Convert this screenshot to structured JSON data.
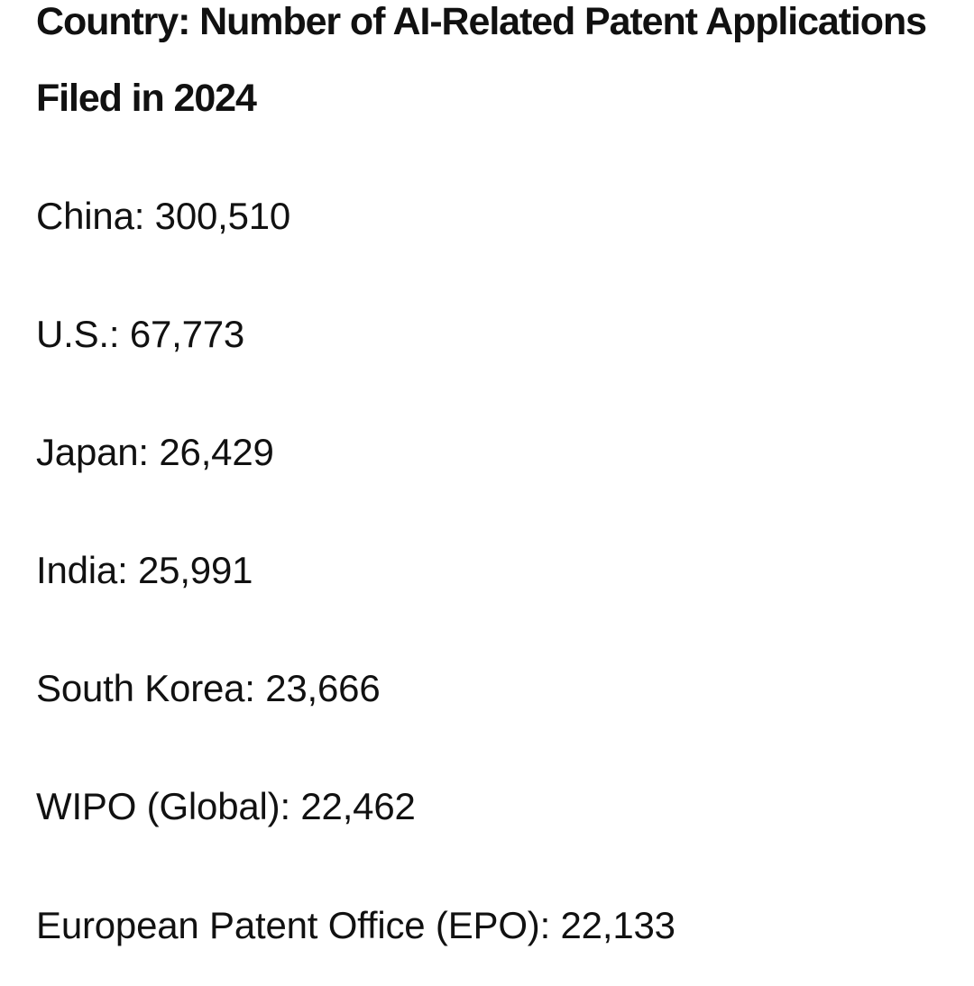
{
  "document": {
    "title": "Country: Number of AI-Related Patent Applications Filed in 2024",
    "entries": [
      {
        "text": "China: 300,510"
      },
      {
        "text": "U.S.: 67,773"
      },
      {
        "text": "Japan: 26,429"
      },
      {
        "text": "India: 25,991"
      },
      {
        "text": "South Korea: 23,666"
      },
      {
        "text": "WIPO (Global): 22,462"
      },
      {
        "text": "European Patent Office (EPO): 22,133"
      }
    ]
  }
}
